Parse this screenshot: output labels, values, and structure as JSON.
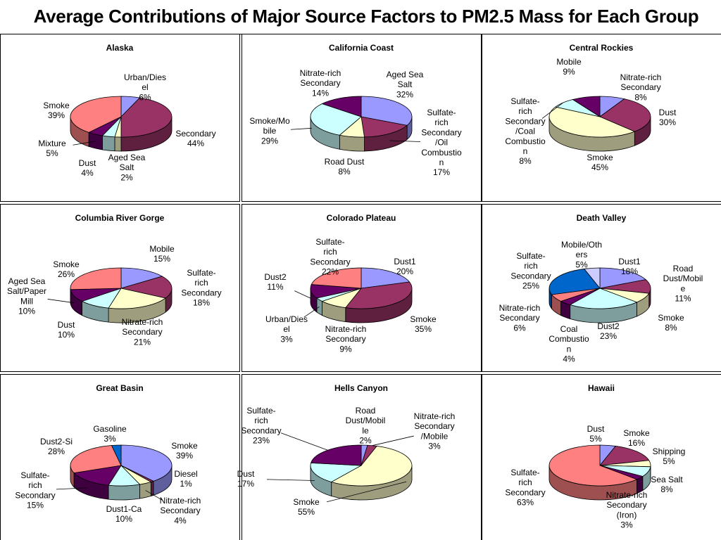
{
  "title": "Average Contributions of Major Source Factors to PM2.5 Mass for Each Group",
  "chart_data": [
    {
      "type": "pie",
      "title": "Alaska",
      "slices": [
        {
          "label": "Urban/Diesel",
          "value": 6,
          "color": "#9999ff"
        },
        {
          "label": "Secondary",
          "value": 44,
          "color": "#993366"
        },
        {
          "label": "Aged Sea Salt",
          "value": 2,
          "color": "#ffffcc"
        },
        {
          "label": "Dust",
          "value": 4,
          "color": "#ccffff"
        },
        {
          "label": "Mixture",
          "value": 5,
          "color": "#660066"
        },
        {
          "label": "Smoke",
          "value": 39,
          "color": "#ff8080"
        }
      ]
    },
    {
      "type": "pie",
      "title": "California Coast",
      "slices": [
        {
          "label": "Aged Sea Salt",
          "value": 32,
          "color": "#9999ff"
        },
        {
          "label": "Sulfate-rich Secondary/Oil Combustion",
          "value": 17,
          "color": "#993366"
        },
        {
          "label": "Road Dust",
          "value": 8,
          "color": "#ffffcc"
        },
        {
          "label": "Smoke/Mobile",
          "value": 29,
          "color": "#ccffff"
        },
        {
          "label": "Nitrate-rich Secondary",
          "value": 14,
          "color": "#660066"
        }
      ]
    },
    {
      "type": "pie",
      "title": "Central Rockies",
      "slices": [
        {
          "label": "Nitrate-rich Secondary",
          "value": 8,
          "color": "#9999ff"
        },
        {
          "label": "Dust",
          "value": 30,
          "color": "#993366"
        },
        {
          "label": "Smoke",
          "value": 45,
          "color": "#ffffcc"
        },
        {
          "label": "Sulfate-rich Secondary/Coal Combustion",
          "value": 8,
          "color": "#ccffff"
        },
        {
          "label": "Mobile",
          "value": 9,
          "color": "#660066"
        }
      ]
    },
    {
      "type": "pie",
      "title": "Columbia River Gorge",
      "slices": [
        {
          "label": "Mobile",
          "value": 15,
          "color": "#9999ff"
        },
        {
          "label": "Sulfate-rich Secondary",
          "value": 18,
          "color": "#993366"
        },
        {
          "label": "Nitrate-rich Secondary",
          "value": 21,
          "color": "#ffffcc"
        },
        {
          "label": "Dust",
          "value": 10,
          "color": "#ccffff"
        },
        {
          "label": "Aged Sea Salt/Paper Mill",
          "value": 10,
          "color": "#660066"
        },
        {
          "label": "Smoke",
          "value": 26,
          "color": "#ff8080"
        }
      ]
    },
    {
      "type": "pie",
      "title": "Colorado Plateau",
      "slices": [
        {
          "label": "Dust1",
          "value": 20,
          "color": "#9999ff"
        },
        {
          "label": "Smoke",
          "value": 35,
          "color": "#993366"
        },
        {
          "label": "Nitrate-rich Secondary",
          "value": 9,
          "color": "#ffffcc"
        },
        {
          "label": "Urban/Diesel",
          "value": 3,
          "color": "#ccffff"
        },
        {
          "label": "Dust2",
          "value": 11,
          "color": "#660066"
        },
        {
          "label": "Sulfate-rich Secondary",
          "value": 22,
          "color": "#ff8080"
        }
      ]
    },
    {
      "type": "pie",
      "title": "Death Valley",
      "slices": [
        {
          "label": "Dust1",
          "value": 18,
          "color": "#9999ff"
        },
        {
          "label": "Road Dust/Mobile",
          "value": 11,
          "color": "#993366"
        },
        {
          "label": "Smoke",
          "value": 8,
          "color": "#ffffcc"
        },
        {
          "label": "Dust2",
          "value": 23,
          "color": "#ccffff"
        },
        {
          "label": "Coal Combustion",
          "value": 4,
          "color": "#660066"
        },
        {
          "label": "Nitrate-rich Secondary",
          "value": 6,
          "color": "#ff8080"
        },
        {
          "label": "Sulfate-rich Secondary",
          "value": 25,
          "color": "#0066cc"
        },
        {
          "label": "Mobile/Others",
          "value": 5,
          "color": "#ccccff"
        }
      ]
    },
    {
      "type": "pie",
      "title": "Great Basin",
      "slices": [
        {
          "label": "Smoke",
          "value": 39,
          "color": "#9999ff"
        },
        {
          "label": "Diesel",
          "value": 1,
          "color": "#993366"
        },
        {
          "label": "Nitrate-rich Secondary",
          "value": 4,
          "color": "#ffffcc"
        },
        {
          "label": "Dust1-Ca",
          "value": 10,
          "color": "#ccffff"
        },
        {
          "label": "Sulfate-rich Secondary",
          "value": 15,
          "color": "#660066"
        },
        {
          "label": "Dust2-Si",
          "value": 28,
          "color": "#ff8080"
        },
        {
          "label": "Gasoline",
          "value": 3,
          "color": "#0066cc"
        }
      ]
    },
    {
      "type": "pie",
      "title": "Hells Canyon",
      "slices": [
        {
          "label": "Road Dust/Mobile",
          "value": 2,
          "color": "#9999ff"
        },
        {
          "label": "Nitrate-rich Secondary/Mobile",
          "value": 3,
          "color": "#993366"
        },
        {
          "label": "Smoke",
          "value": 55,
          "color": "#ffffcc"
        },
        {
          "label": "Dust",
          "value": 17,
          "color": "#ccffff"
        },
        {
          "label": "Sulfate-rich Secondary",
          "value": 23,
          "color": "#660066"
        }
      ]
    },
    {
      "type": "pie",
      "title": "Hawaii",
      "slices": [
        {
          "label": "Dust",
          "value": 5,
          "color": "#9999ff"
        },
        {
          "label": "Smoke",
          "value": 16,
          "color": "#993366"
        },
        {
          "label": "Shipping",
          "value": 5,
          "color": "#ffffcc"
        },
        {
          "label": "Sea Salt",
          "value": 8,
          "color": "#ccffff"
        },
        {
          "label": "Nitrate-rich Secondary (Iron)",
          "value": 3,
          "color": "#660066"
        },
        {
          "label": "Sulfate-rich Secondary",
          "value": 63,
          "color": "#ff8080"
        }
      ]
    }
  ]
}
